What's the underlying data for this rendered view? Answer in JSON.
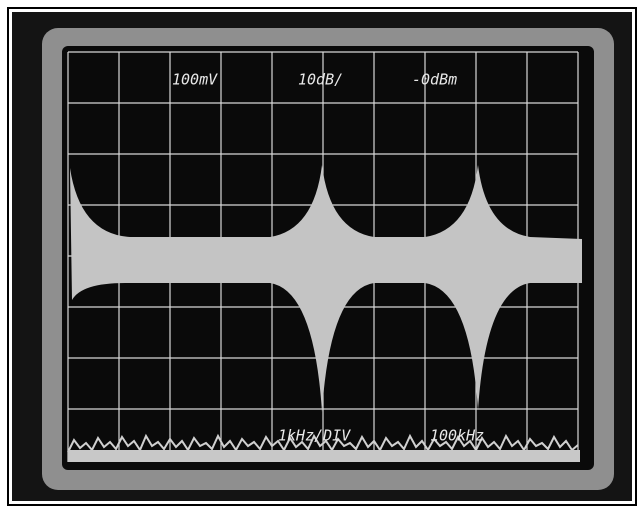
{
  "screen": {
    "top_labels": [
      "100mV",
      "10dB/",
      "-0dBm"
    ],
    "bottom_labels": [
      "1kHz/DIV",
      "100kHz"
    ]
  }
}
